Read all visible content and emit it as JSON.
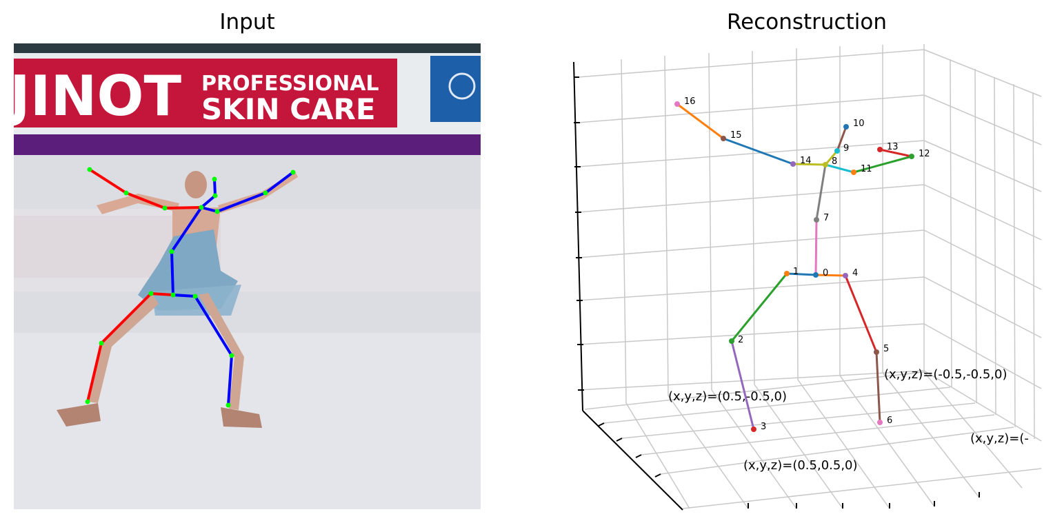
{
  "titles": {
    "left": "Input",
    "right": "Reconstruction"
  },
  "banner": {
    "brand": "JINOT",
    "line1": "PROFESSIONAL",
    "line2": "SKIN CARE"
  },
  "joint_labels": [
    "0",
    "1",
    "2",
    "3",
    "4",
    "5",
    "6",
    "7",
    "8",
    "9",
    "10",
    "11",
    "12",
    "13",
    "14",
    "15",
    "16"
  ],
  "annotations": {
    "a1": "(x,y,z)=(0.5,-0.5,0)",
    "a2": "(x,y,z)=(-0.5,-0.5,0)",
    "a3": "(x,y,z)=(0.5,0.5,0)",
    "a4": "(x,y,z)=(-"
  },
  "colors": {
    "left_limb": "#ff0000",
    "right_limb": "#0000ff",
    "keypoint": "#00ff00",
    "grid": "#c8c8c8"
  }
}
